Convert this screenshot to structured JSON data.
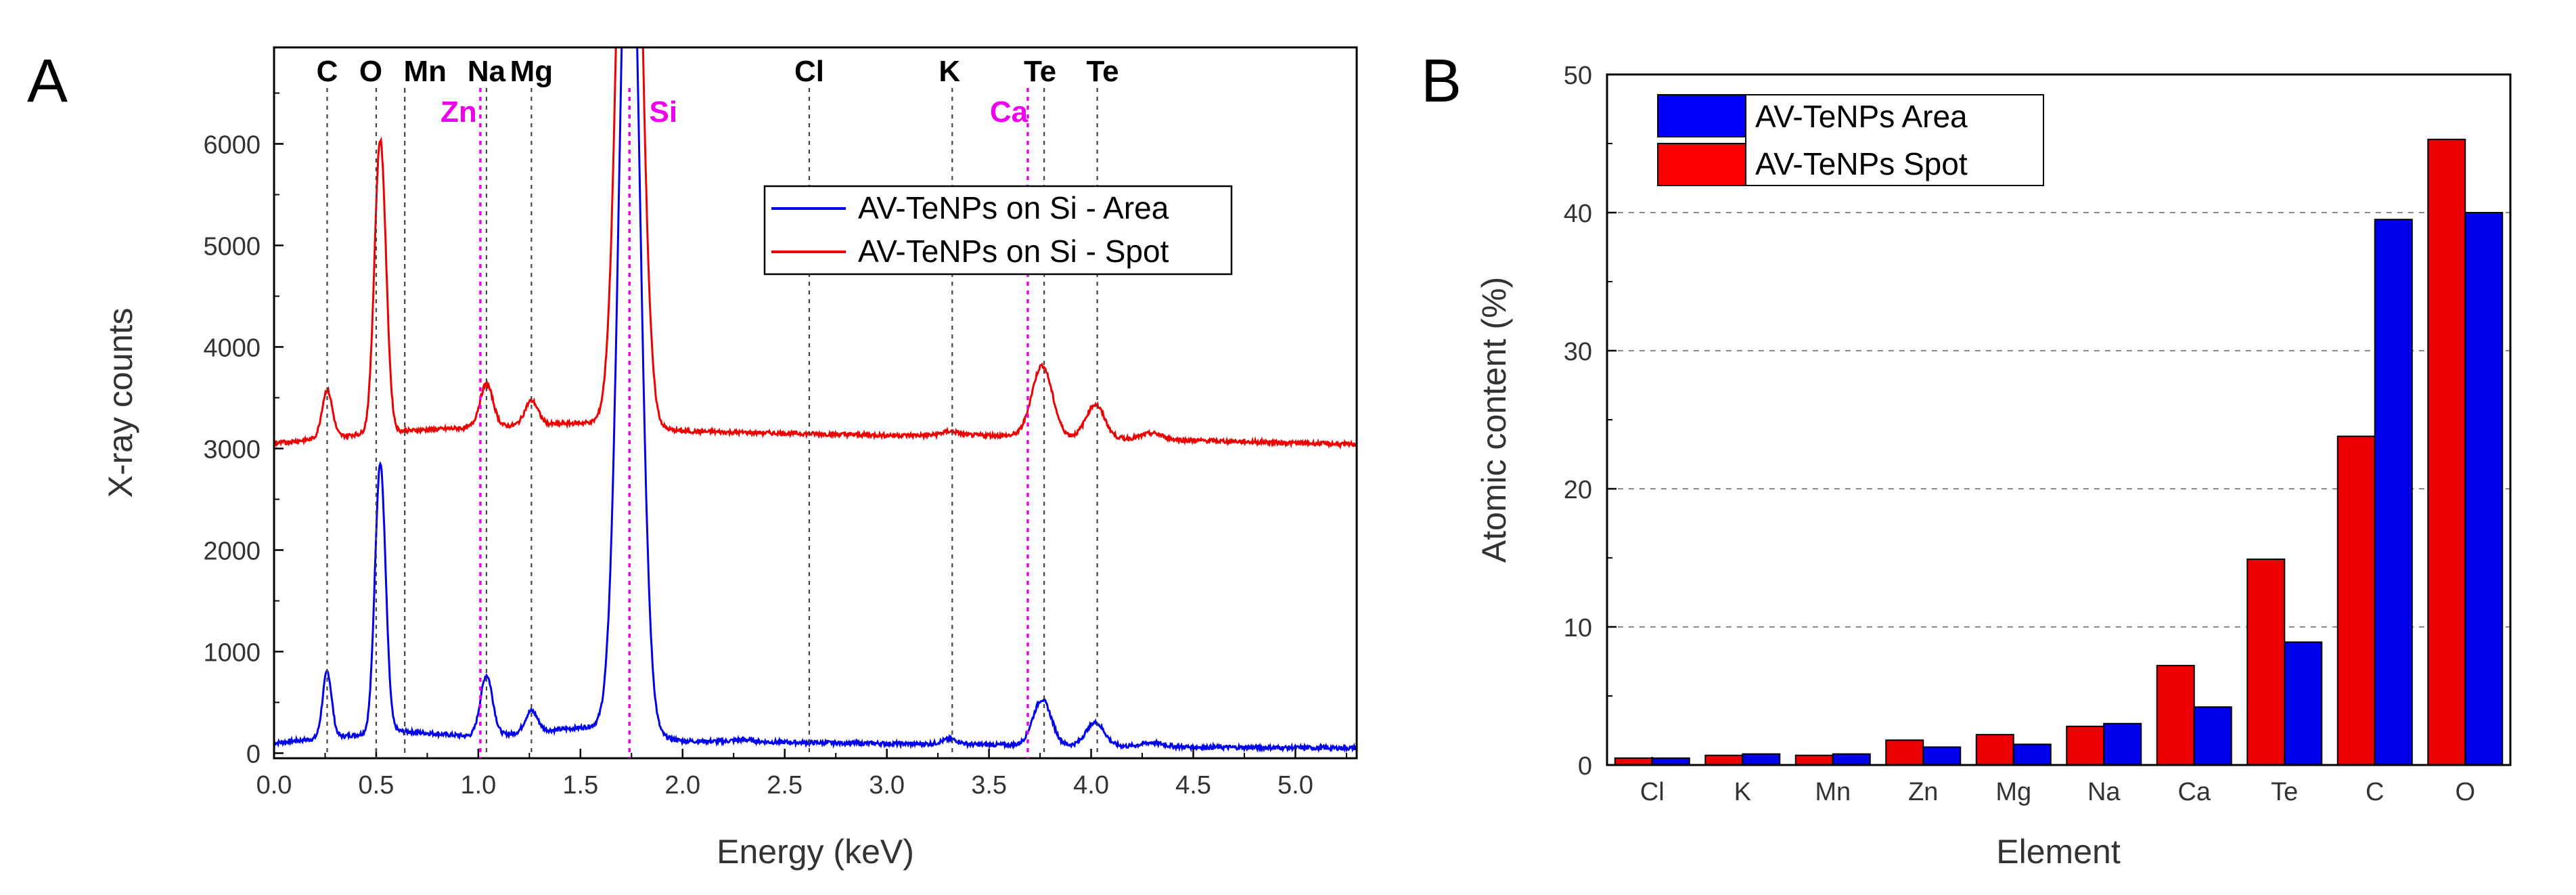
{
  "panels": {
    "a": "A",
    "b": "B"
  },
  "colors": {
    "area": "#0000ee",
    "spot": "#ee0000",
    "bar_area": "#0000ff",
    "bar_spot": "#ff0000",
    "marker_black": "#444444",
    "marker_magenta": "#ee00ee"
  },
  "chart_data": [
    {
      "type": "line",
      "title": "",
      "xlabel": "Energy (keV)",
      "ylabel": "X-ray counts",
      "xlim": [
        0.0,
        5.3
      ],
      "ylim": [
        -50,
        6950
      ],
      "xticks": [
        "0.0",
        "0.5",
        "1.0",
        "1.5",
        "2.0",
        "2.5",
        "3.0",
        "3.5",
        "4.0",
        "4.5",
        "5.0"
      ],
      "yticks": [
        "0",
        "1000",
        "2000",
        "3000",
        "4000",
        "5000",
        "6000"
      ],
      "legend": [
        "AV-TeNPs on Si - Area",
        "AV-TeNPs on Si - Spot"
      ],
      "legend_position": "upper-right",
      "series": [
        {
          "name": "AV-TeNPs on Si - Area",
          "color": "blue",
          "baseline": [
            [
              0,
              100
            ],
            [
              0.6,
              220
            ],
            [
              1.0,
              160
            ],
            [
              1.6,
              270
            ],
            [
              2.0,
              120
            ],
            [
              3.0,
              95
            ],
            [
              4.5,
              60
            ],
            [
              5.3,
              50
            ]
          ],
          "peaks": [
            [
              0.26,
              650,
              0.022
            ],
            [
              0.52,
              2650,
              0.026
            ],
            [
              1.04,
              600,
              0.03
            ],
            [
              1.26,
              210,
              0.03
            ],
            [
              1.74,
              9000,
              0.05
            ],
            [
              2.3,
              20,
              0.05
            ],
            [
              3.31,
              50,
              0.04
            ],
            [
              3.76,
              450,
              0.045
            ],
            [
              4.02,
              230,
              0.045
            ],
            [
              4.3,
              40,
              0.05
            ]
          ]
        },
        {
          "name": "AV-TeNPs on Si - Spot",
          "color": "red",
          "baseline": [
            [
              0,
              3050
            ],
            [
              0.5,
              3160
            ],
            [
              1.0,
              3210
            ],
            [
              1.6,
              3260
            ],
            [
              2.0,
              3170
            ],
            [
              3.0,
              3130
            ],
            [
              3.5,
              3130
            ],
            [
              4.5,
              3080
            ],
            [
              5.3,
              3040
            ]
          ],
          "peaks": [
            [
              0.26,
              470,
              0.025
            ],
            [
              0.52,
              2880,
              0.028
            ],
            [
              1.04,
              420,
              0.032
            ],
            [
              1.26,
              240,
              0.032
            ],
            [
              1.74,
              9000,
              0.05
            ],
            [
              3.31,
              40,
              0.04
            ],
            [
              3.76,
              700,
              0.05
            ],
            [
              4.02,
              330,
              0.045
            ],
            [
              4.3,
              60,
              0.05
            ]
          ]
        }
      ],
      "element_markers": [
        {
          "label": "C",
          "x": 0.26,
          "color": "black",
          "row": "top"
        },
        {
          "label": "O",
          "x": 0.5,
          "color": "black",
          "row": "top"
        },
        {
          "label": "Mn",
          "x": 0.64,
          "color": "black",
          "row": "top"
        },
        {
          "label": "Na",
          "x": 1.04,
          "color": "black",
          "row": "top"
        },
        {
          "label": "Mg",
          "x": 1.26,
          "color": "black",
          "row": "top"
        },
        {
          "label": "Cl",
          "x": 2.62,
          "color": "black",
          "row": "top"
        },
        {
          "label": "K",
          "x": 3.32,
          "color": "black",
          "row": "top"
        },
        {
          "label": "Te",
          "x": 3.77,
          "color": "black",
          "row": "top"
        },
        {
          "label": "Te",
          "x": 4.03,
          "color": "black",
          "row": "top"
        },
        {
          "label": "Zn",
          "x": 1.01,
          "color": "magenta",
          "row": "second"
        },
        {
          "label": "Si",
          "x": 1.74,
          "color": "magenta",
          "row": "second"
        },
        {
          "label": "Ca",
          "x": 3.69,
          "color": "magenta",
          "row": "second"
        }
      ]
    },
    {
      "type": "bar",
      "title": "",
      "xlabel": "Element",
      "ylabel": "Atomic content (%)",
      "ylim": [
        0,
        50
      ],
      "yticks": [
        "0",
        "10",
        "20",
        "30",
        "40",
        "50"
      ],
      "grid": "horizontal dashed",
      "legend_position": "top-left",
      "categories": [
        "Cl",
        "K",
        "Mn",
        "Zn",
        "Mg",
        "Na",
        "Ca",
        "Te",
        "C",
        "O"
      ],
      "series": [
        {
          "name": "AV-TeNPs Spot",
          "color": "red",
          "values": [
            0.5,
            0.7,
            0.7,
            1.8,
            2.2,
            2.8,
            7.2,
            14.9,
            23.8,
            45.3
          ]
        },
        {
          "name": "AV-TeNPs Area",
          "color": "blue",
          "values": [
            0.5,
            0.8,
            0.8,
            1.3,
            1.5,
            3.0,
            4.2,
            8.9,
            39.5,
            40.0
          ]
        }
      ],
      "legend": [
        "AV-TeNPs Area",
        "AV-TeNPs Spot"
      ]
    }
  ]
}
